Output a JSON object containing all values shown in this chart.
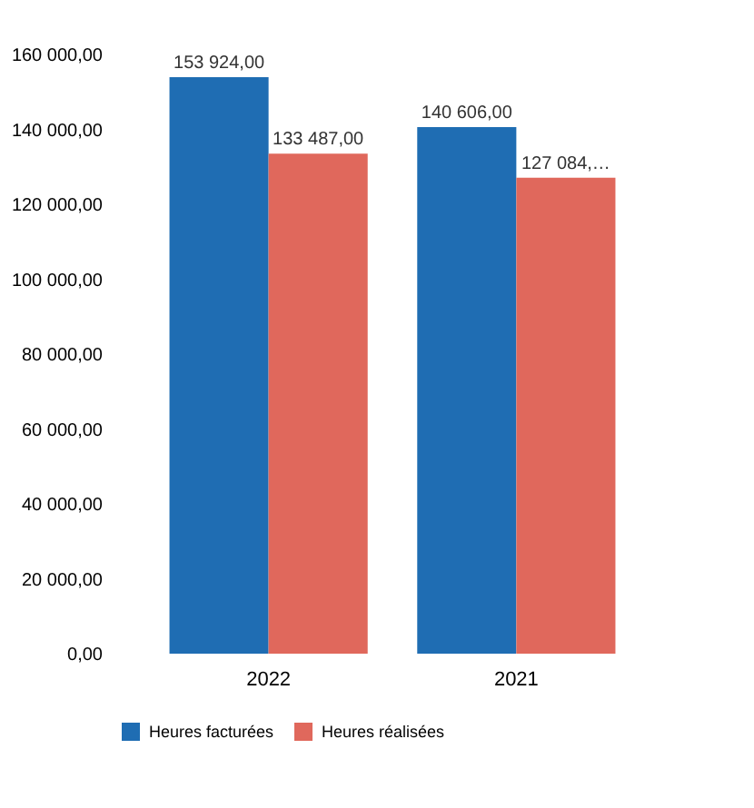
{
  "chart_data": {
    "type": "bar",
    "categories": [
      "2022",
      "2021"
    ],
    "series": [
      {
        "name": "Heures facturées",
        "color": "#1f6db3",
        "values": [
          153924,
          140606
        ],
        "value_labels": [
          "153 924,00",
          "140 606,00"
        ]
      },
      {
        "name": "Heures réalisées",
        "color": "#e0685c",
        "values": [
          133487,
          127084
        ],
        "value_labels": [
          "133 487,00",
          "127 084,…"
        ]
      }
    ],
    "ylim": [
      0,
      160000
    ],
    "yticks": [
      {
        "value": 0,
        "label": "0,00"
      },
      {
        "value": 20000,
        "label": "20 000,00"
      },
      {
        "value": 40000,
        "label": "40 000,00"
      },
      {
        "value": 60000,
        "label": "60 000,00"
      },
      {
        "value": 80000,
        "label": "80 000,00"
      },
      {
        "value": 100000,
        "label": "100 000,00"
      },
      {
        "value": 120000,
        "label": "120 000,00"
      },
      {
        "value": 140000,
        "label": "140 000,00"
      },
      {
        "value": 160000,
        "label": "160 000,00"
      }
    ],
    "grid": false,
    "legend": "bottom"
  }
}
